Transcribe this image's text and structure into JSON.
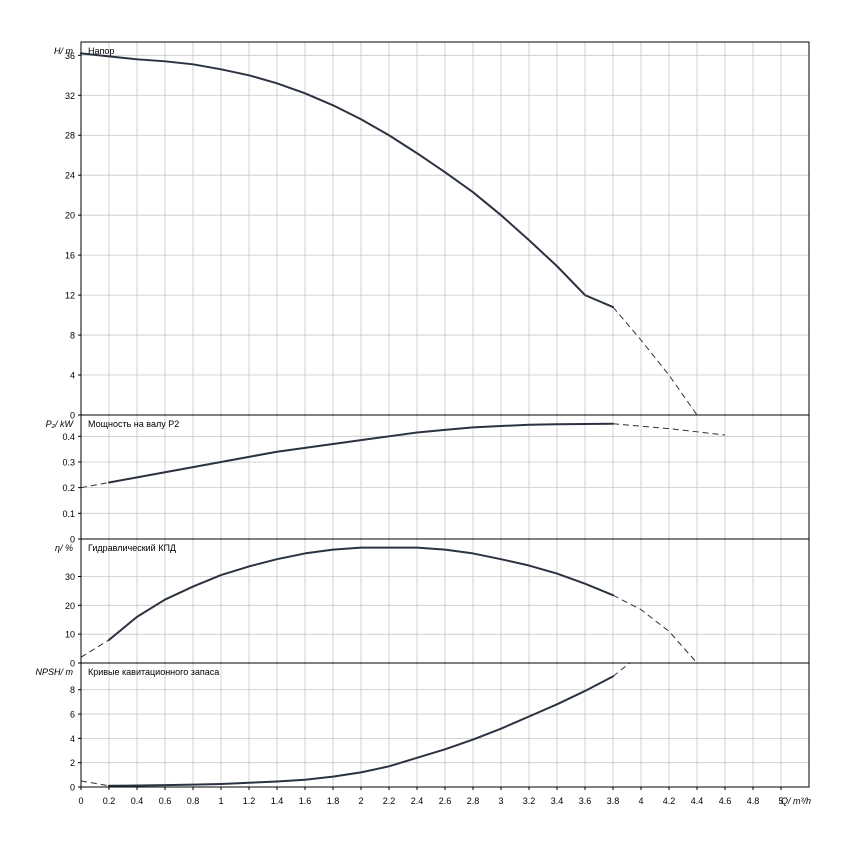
{
  "x_axis": {
    "label": "Q/ m³/h",
    "min": 0,
    "max": 5.2,
    "step": 0.2,
    "ticks": [
      "0",
      "0.2",
      "0.4",
      "0.6",
      "0.8",
      "1",
      "1.2",
      "1.4",
      "1.6",
      "1.8",
      "2",
      "2.2",
      "2.4",
      "2.6",
      "2.8",
      "3",
      "3.2",
      "3.4",
      "3.6",
      "3.8",
      "4",
      "4.2",
      "4.4",
      "4.6",
      "4.8",
      "5"
    ]
  },
  "colors": {
    "curve": "#2b3342",
    "grid": "#c8c8c8",
    "frame": "#000000"
  },
  "chart_data": [
    {
      "id": "head",
      "type": "line",
      "title": "Напор",
      "ylabel": "H/ m",
      "ylim": [
        0,
        37.333
      ],
      "yticks": [
        0,
        4,
        8,
        12,
        16,
        20,
        24,
        28,
        32,
        36
      ],
      "grid": true,
      "solid": {
        "x": [
          0,
          0.2,
          0.4,
          0.6,
          0.8,
          1.0,
          1.2,
          1.4,
          1.6,
          1.8,
          2.0,
          2.2,
          2.4,
          2.6,
          2.8,
          3.0,
          3.2,
          3.4,
          3.6,
          3.8
        ],
        "y": [
          36.2,
          35.9,
          35.6,
          35.4,
          35.1,
          34.6,
          34.0,
          33.2,
          32.2,
          31.0,
          29.6,
          28.0,
          26.2,
          24.3,
          22.3,
          20.0,
          17.5,
          14.9,
          12.0,
          10.8
        ]
      },
      "dashed": {
        "x": [
          3.8,
          4.0,
          4.2,
          4.4
        ],
        "y": [
          10.8,
          7.5,
          4.0,
          0.0
        ]
      }
    },
    {
      "id": "power",
      "type": "line",
      "title": "Мощность на валу P2",
      "ylabel": "P₂/ kW",
      "ylim": [
        0,
        0.483
      ],
      "yticks": [
        0,
        0.1,
        0.2,
        0.3,
        0.4
      ],
      "ytick_labels": [
        "0",
        "0.1",
        "0.2",
        "0.3",
        "0.4"
      ],
      "grid": true,
      "solid": {
        "x": [
          0.2,
          0.4,
          0.6,
          0.8,
          1.0,
          1.2,
          1.4,
          1.6,
          1.8,
          2.0,
          2.2,
          2.4,
          2.6,
          2.8,
          3.0,
          3.2,
          3.4,
          3.6,
          3.8
        ],
        "y": [
          0.22,
          0.24,
          0.26,
          0.28,
          0.3,
          0.32,
          0.34,
          0.355,
          0.37,
          0.385,
          0.4,
          0.415,
          0.425,
          0.435,
          0.44,
          0.445,
          0.447,
          0.448,
          0.449
        ]
      },
      "dashed_start": {
        "x": [
          0,
          0.2
        ],
        "y": [
          0.2,
          0.22
        ]
      },
      "dashed": {
        "x": [
          3.8,
          4.2,
          4.6
        ],
        "y": [
          0.449,
          0.43,
          0.405
        ]
      }
    },
    {
      "id": "efficiency",
      "type": "line",
      "title": "Гидравлический КПД",
      "ylabel": "η/ %",
      "ylim": [
        0,
        43
      ],
      "yticks": [
        0,
        10,
        20,
        30
      ],
      "grid": true,
      "solid": {
        "x": [
          0.2,
          0.4,
          0.6,
          0.8,
          1.0,
          1.2,
          1.4,
          1.6,
          1.8,
          2.0,
          2.2,
          2.4,
          2.6,
          2.8,
          3.0,
          3.2,
          3.4,
          3.6,
          3.8
        ],
        "y": [
          8.0,
          16.0,
          22.0,
          26.5,
          30.5,
          33.5,
          36.0,
          38.0,
          39.3,
          40.0,
          40.0,
          40.0,
          39.3,
          38.0,
          36.0,
          33.8,
          31.0,
          27.5,
          23.5
        ]
      },
      "dashed_start": {
        "x": [
          0,
          0.2
        ],
        "y": [
          2.0,
          8.0
        ]
      },
      "dashed": {
        "x": [
          3.8,
          4.0,
          4.2,
          4.4
        ],
        "y": [
          23.5,
          18.5,
          11.0,
          0.0
        ]
      }
    },
    {
      "id": "npsh",
      "type": "line",
      "title": "Кривые кавитационного запаса",
      "ylabel": "NPSH/ m",
      "ylim": [
        0,
        10.2
      ],
      "yticks": [
        0,
        2,
        4,
        6,
        8
      ],
      "grid": true,
      "solid": {
        "x": [
          0.2,
          0.4,
          0.6,
          0.8,
          1.0,
          1.2,
          1.4,
          1.6,
          1.8,
          2.0,
          2.2,
          2.4,
          2.6,
          2.8,
          3.0,
          3.2,
          3.4,
          3.6,
          3.8
        ],
        "y": [
          0.1,
          0.12,
          0.15,
          0.2,
          0.25,
          0.35,
          0.45,
          0.6,
          0.85,
          1.2,
          1.7,
          2.4,
          3.1,
          3.9,
          4.8,
          5.8,
          6.8,
          7.9,
          9.1
        ]
      },
      "dashed_start": {
        "x": [
          0,
          0.2
        ],
        "y": [
          0.5,
          0.1
        ]
      },
      "dashed": {
        "x": [
          3.8,
          3.92
        ],
        "y": [
          9.1,
          10.2
        ]
      }
    }
  ]
}
